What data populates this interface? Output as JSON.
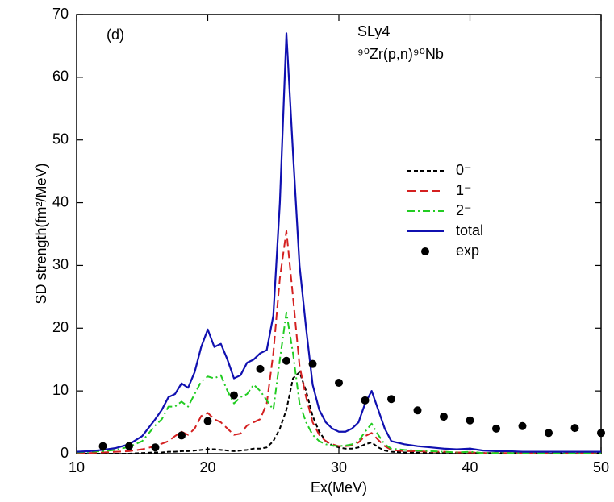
{
  "chart_data": {
    "type": "line",
    "panel_label": "(d)",
    "annotations": [
      "SLy4",
      "⁹⁰Zr(p,n)⁹⁰Nb"
    ],
    "xlabel": "Ex(MeV)",
    "ylabel": "SD strength(fm²/MeV)",
    "xlim": [
      10,
      50
    ],
    "xticks": [
      10,
      20,
      30,
      40,
      50
    ],
    "ylim": [
      0,
      70
    ],
    "yticks": [
      0,
      10,
      20,
      30,
      40,
      50,
      60,
      70
    ],
    "grid": false,
    "x": [
      10,
      11,
      12,
      13,
      14,
      15,
      16,
      16.5,
      17,
      17.5,
      18,
      18.5,
      19,
      19.5,
      20,
      20.5,
      21,
      21.5,
      22,
      22.5,
      23,
      23.5,
      24,
      24.5,
      25,
      25.5,
      26,
      26.5,
      27,
      27.5,
      28,
      28.5,
      29,
      29.5,
      30,
      30.5,
      31,
      31.5,
      32,
      32.5,
      33,
      33.5,
      34,
      35,
      36,
      37,
      38,
      39,
      40,
      41,
      42,
      43,
      44,
      45,
      46,
      47,
      48,
      49,
      50
    ],
    "series": [
      {
        "name": "0⁻",
        "color": "#000000",
        "line_style": "dashed",
        "values": [
          0,
          0,
          0,
          0,
          0,
          0.1,
          0.2,
          0.2,
          0.3,
          0.3,
          0.4,
          0.4,
          0.5,
          0.6,
          0.7,
          0.7,
          0.6,
          0.5,
          0.4,
          0.5,
          0.6,
          0.8,
          0.8,
          1,
          2,
          4,
          7,
          12,
          13,
          10,
          6,
          3.5,
          2,
          1.3,
          1,
          0.8,
          0.8,
          1,
          1.5,
          1.8,
          1,
          0.5,
          0.3,
          0.2,
          0.2,
          0.1,
          0.1,
          0.1,
          0.1,
          0.1,
          0.1,
          0.1,
          0.1,
          0.1,
          0.1,
          0.1,
          0.1,
          0.1,
          0.1
        ]
      },
      {
        "name": "1⁻",
        "color": "#d42020",
        "line_style": "long-dashed",
        "values": [
          0.1,
          0.1,
          0.2,
          0.3,
          0.4,
          0.7,
          1.2,
          1.6,
          2,
          2.8,
          3.5,
          3,
          4,
          6,
          6.5,
          5.5,
          5,
          4,
          3,
          3.2,
          4.5,
          5,
          5.5,
          8,
          16,
          28,
          35.5,
          25,
          14,
          9,
          5,
          3,
          2,
          1.5,
          1.2,
          1.2,
          1.3,
          1.8,
          2.8,
          3.3,
          2.2,
          1.2,
          0.6,
          0.4,
          0.4,
          0.3,
          0.3,
          0.2,
          0.2,
          0.1,
          0.1,
          0.1,
          0.1,
          0.1,
          0.1,
          0.1,
          0.1,
          0.1,
          0.1
        ]
      },
      {
        "name": "2⁻",
        "color": "#22cc22",
        "line_style": "dash-dot",
        "values": [
          0.2,
          0.3,
          0.4,
          0.6,
          1.1,
          2,
          4.5,
          5.5,
          7.5,
          7.5,
          8.3,
          7.5,
          9.5,
          11.5,
          12.3,
          12,
          12.5,
          10,
          8,
          9,
          9.5,
          11,
          10,
          8.5,
          7,
          15,
          22.5,
          16,
          8,
          5,
          3,
          2,
          1.5,
          1.3,
          1.2,
          1.3,
          1.5,
          2,
          3.5,
          4.8,
          3,
          1.5,
          0.8,
          0.6,
          0.5,
          0.4,
          0.3,
          0.2,
          0.3,
          0.1,
          0.1,
          0.1,
          0.1,
          0.1,
          0.1,
          0.1,
          0.1,
          0.1,
          0.1
        ]
      },
      {
        "name": "total",
        "color": "#1010b0",
        "line_style": "solid",
        "values": [
          0.3,
          0.4,
          0.6,
          0.9,
          1.5,
          2.8,
          5.5,
          7,
          9,
          9.5,
          11.2,
          10.5,
          13,
          17,
          19.8,
          17,
          17.5,
          15,
          12,
          12.5,
          14.5,
          15,
          16,
          16.5,
          22,
          40,
          67,
          48,
          30,
          20,
          11,
          7,
          5,
          4,
          3.5,
          3.5,
          4,
          5,
          8,
          10,
          7,
          4,
          2,
          1.5,
          1.2,
          1,
          0.8,
          0.7,
          0.8,
          0.5,
          0.4,
          0.4,
          0.3,
          0.3,
          0.3,
          0.3,
          0.3,
          0.3,
          0.3
        ]
      },
      {
        "name": "exp",
        "color": "#000000",
        "marker": "circle",
        "x": [
          12,
          14,
          16,
          18,
          20,
          22,
          24,
          26,
          28,
          30,
          32,
          34,
          36,
          38,
          40,
          42,
          44,
          46,
          48,
          50
        ],
        "values": [
          1.2,
          1.2,
          1,
          2.9,
          5.2,
          9.3,
          13.5,
          14.8,
          14.3,
          11.3,
          8.5,
          8.7,
          6.9,
          5.9,
          5.3,
          4,
          4.4,
          3.3,
          4.1,
          3.3
        ]
      }
    ]
  }
}
